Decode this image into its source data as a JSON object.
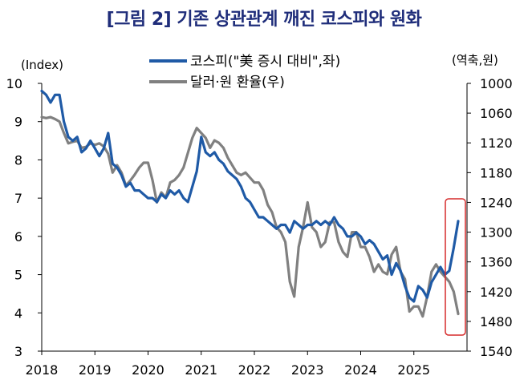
{
  "title": "[그림 2] 기존 상관관계 깨진 코스피와 원화",
  "chart_data": {
    "type": "line",
    "title": "[그림 2] 기존 상관관계 깨진 코스피와 원화",
    "left_axis": {
      "unit": "(Index)",
      "range": [
        3,
        10
      ],
      "ticks": [
        "3",
        "4",
        "5",
        "6",
        "7",
        "8",
        "9",
        "10"
      ]
    },
    "right_axis": {
      "unit": "(역축,원)",
      "range": [
        1000,
        1540
      ],
      "inverted": true,
      "ticks": [
        "1000",
        "1060",
        "1120",
        "1180",
        "1240",
        "1300",
        "1360",
        "1420",
        "1480",
        "1540"
      ]
    },
    "x_axis": {
      "range": [
        "2018-01",
        "2026-01"
      ],
      "ticks": [
        "2018",
        "2019",
        "2020",
        "2021",
        "2022",
        "2023",
        "2024",
        "2025"
      ]
    },
    "grid": false,
    "legend_position": "top",
    "series": [
      {
        "name": "코스피(\"美 증시 대비\",좌)",
        "axis": "left",
        "color": "#1f5aa6",
        "x": [
          "2018-01",
          "2018-02",
          "2018-03",
          "2018-04",
          "2018-05",
          "2018-06",
          "2018-07",
          "2018-08",
          "2018-09",
          "2018-10",
          "2018-11",
          "2018-12",
          "2019-01",
          "2019-02",
          "2019-03",
          "2019-04",
          "2019-05",
          "2019-06",
          "2019-07",
          "2019-08",
          "2019-09",
          "2019-10",
          "2019-11",
          "2019-12",
          "2020-01",
          "2020-02",
          "2020-03",
          "2020-04",
          "2020-05",
          "2020-06",
          "2020-07",
          "2020-08",
          "2020-09",
          "2020-10",
          "2020-11",
          "2020-12",
          "2021-01",
          "2021-02",
          "2021-03",
          "2021-04",
          "2021-05",
          "2021-06",
          "2021-07",
          "2021-08",
          "2021-09",
          "2021-10",
          "2021-11",
          "2021-12",
          "2022-01",
          "2022-02",
          "2022-03",
          "2022-04",
          "2022-05",
          "2022-06",
          "2022-07",
          "2022-08",
          "2022-09",
          "2022-10",
          "2022-11",
          "2022-12",
          "2023-01",
          "2023-02",
          "2023-03",
          "2023-04",
          "2023-05",
          "2023-06",
          "2023-07",
          "2023-08",
          "2023-09",
          "2023-10",
          "2023-11",
          "2023-12",
          "2024-01",
          "2024-02",
          "2024-03",
          "2024-04",
          "2024-05",
          "2024-06",
          "2024-07",
          "2024-08",
          "2024-09",
          "2024-10",
          "2024-11",
          "2024-12",
          "2025-01",
          "2025-02",
          "2025-03",
          "2025-04",
          "2025-05",
          "2025-06",
          "2025-07",
          "2025-08",
          "2025-09",
          "2025-10",
          "2025-11"
        ],
        "values": [
          9.8,
          9.7,
          9.5,
          9.7,
          9.7,
          9.0,
          8.6,
          8.5,
          8.6,
          8.2,
          8.3,
          8.5,
          8.3,
          8.1,
          8.3,
          8.7,
          7.9,
          7.8,
          7.6,
          7.3,
          7.4,
          7.2,
          7.2,
          7.1,
          7.0,
          7.0,
          6.9,
          7.1,
          7.0,
          7.2,
          7.1,
          7.2,
          7.0,
          6.9,
          7.3,
          7.7,
          8.6,
          8.2,
          8.1,
          8.2,
          8.0,
          7.9,
          7.7,
          7.6,
          7.5,
          7.3,
          7.0,
          6.9,
          6.7,
          6.5,
          6.5,
          6.4,
          6.3,
          6.2,
          6.3,
          6.3,
          6.1,
          6.4,
          6.3,
          6.2,
          6.3,
          6.3,
          6.4,
          6.3,
          6.4,
          6.3,
          6.5,
          6.3,
          6.2,
          6.0,
          6.0,
          6.1,
          6.0,
          5.8,
          5.9,
          5.8,
          5.6,
          5.4,
          5.5,
          5.0,
          5.3,
          5.1,
          4.7,
          4.4,
          4.3,
          4.7,
          4.6,
          4.4,
          4.8,
          5.0,
          5.2,
          5.0,
          5.1,
          5.7,
          6.4
        ]
      },
      {
        "name": "달러·원 환율(우)",
        "axis": "right",
        "color": "#808080",
        "x": [
          "2018-01",
          "2018-02",
          "2018-03",
          "2018-04",
          "2018-05",
          "2018-06",
          "2018-07",
          "2018-08",
          "2018-09",
          "2018-10",
          "2018-11",
          "2018-12",
          "2019-01",
          "2019-02",
          "2019-03",
          "2019-04",
          "2019-05",
          "2019-06",
          "2019-07",
          "2019-08",
          "2019-09",
          "2019-10",
          "2019-11",
          "2019-12",
          "2020-01",
          "2020-02",
          "2020-03",
          "2020-04",
          "2020-05",
          "2020-06",
          "2020-07",
          "2020-08",
          "2020-09",
          "2020-10",
          "2020-11",
          "2020-12",
          "2021-01",
          "2021-02",
          "2021-03",
          "2021-04",
          "2021-05",
          "2021-06",
          "2021-07",
          "2021-08",
          "2021-09",
          "2021-10",
          "2021-11",
          "2021-12",
          "2022-01",
          "2022-02",
          "2022-03",
          "2022-04",
          "2022-05",
          "2022-06",
          "2022-07",
          "2022-08",
          "2022-09",
          "2022-10",
          "2022-11",
          "2022-12",
          "2023-01",
          "2023-02",
          "2023-03",
          "2023-04",
          "2023-05",
          "2023-06",
          "2023-07",
          "2023-08",
          "2023-09",
          "2023-10",
          "2023-11",
          "2023-12",
          "2024-01",
          "2024-02",
          "2024-03",
          "2024-04",
          "2024-05",
          "2024-06",
          "2024-07",
          "2024-08",
          "2024-09",
          "2024-10",
          "2024-11",
          "2024-12",
          "2025-01",
          "2025-02",
          "2025-03",
          "2025-04",
          "2025-05",
          "2025-06",
          "2025-07",
          "2025-08",
          "2025-09",
          "2025-10",
          "2025-11"
        ],
        "values": [
          1068,
          1070,
          1068,
          1072,
          1077,
          1100,
          1121,
          1118,
          1116,
          1130,
          1128,
          1121,
          1124,
          1121,
          1127,
          1142,
          1180,
          1165,
          1180,
          1206,
          1196,
          1184,
          1170,
          1160,
          1160,
          1195,
          1240,
          1220,
          1230,
          1200,
          1195,
          1185,
          1170,
          1140,
          1110,
          1090,
          1100,
          1110,
          1130,
          1115,
          1120,
          1130,
          1150,
          1165,
          1180,
          1185,
          1180,
          1190,
          1200,
          1200,
          1215,
          1245,
          1260,
          1290,
          1300,
          1320,
          1400,
          1430,
          1330,
          1290,
          1240,
          1290,
          1300,
          1330,
          1320,
          1280,
          1280,
          1320,
          1340,
          1350,
          1300,
          1300,
          1330,
          1330,
          1350,
          1380,
          1365,
          1380,
          1385,
          1345,
          1330,
          1380,
          1395,
          1460,
          1450,
          1450,
          1470,
          1430,
          1380,
          1365,
          1380,
          1390,
          1400,
          1420,
          1465
        ]
      }
    ]
  }
}
